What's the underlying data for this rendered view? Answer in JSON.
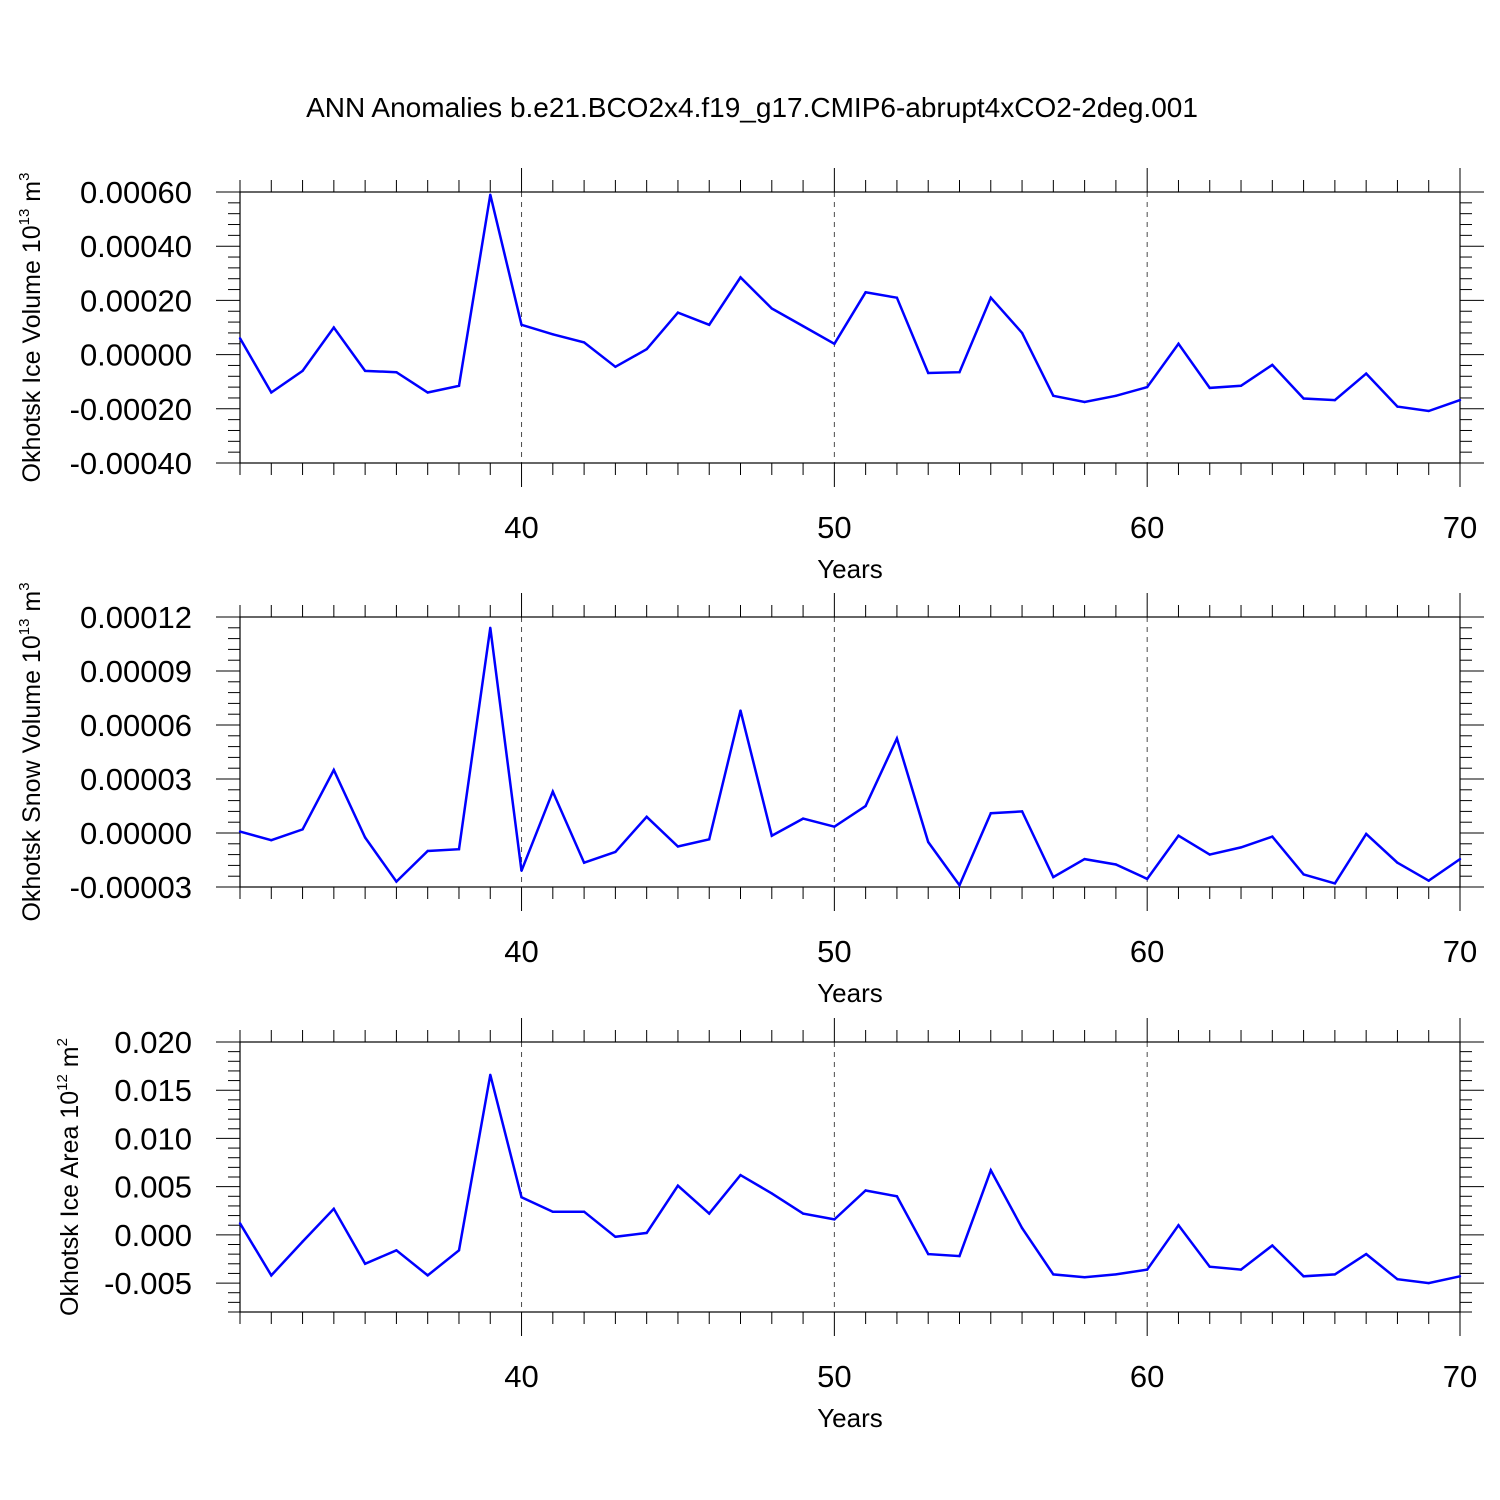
{
  "title": "ANN Anomalies b.e21.BCO2x4.f19_g17.CMIP6-abrupt4xCO2-2deg.001",
  "colors": {
    "line": "#0000ff",
    "axis": "#000000",
    "gridline": "#000000"
  },
  "chart_data": [
    {
      "type": "line",
      "ylabel": {
        "text": "Okhotsk Ice Volume 10",
        "exp": "13",
        "unit": " m",
        "unit_exp": "3"
      },
      "xlabel": "Years",
      "xlim": [
        31,
        70
      ],
      "ylim": [
        -0.0004,
        0.0006
      ],
      "yticks": [
        "0.00060",
        "0.00040",
        "0.00020",
        "0.00000",
        "-0.00020",
        "-0.00040"
      ],
      "xticks": [
        "40",
        "50",
        "60",
        "70"
      ],
      "x": [
        31,
        32,
        33,
        34,
        35,
        36,
        37,
        38,
        39,
        40,
        41,
        42,
        43,
        44,
        45,
        46,
        47,
        48,
        49,
        50,
        51,
        52,
        53,
        54,
        55,
        56,
        57,
        58,
        59,
        60,
        61,
        62,
        63,
        64,
        65,
        66,
        67,
        68,
        69,
        70
      ],
      "series": [
        {
          "values": [
            6e-05,
            -0.00014,
            -6e-05,
            0.0001,
            -6e-05,
            -6.5e-05,
            -0.00014,
            -0.000115,
            0.00059,
            0.00011,
            7.5e-05,
            4.5e-05,
            -4.5e-05,
            2e-05,
            0.000155,
            0.00011,
            0.000285,
            0.00017,
            0.000105,
            4e-05,
            0.00023,
            0.00021,
            -6.8e-05,
            -6.5e-05,
            0.00021,
            8e-05,
            -0.000152,
            -0.000175,
            -0.000152,
            -0.00012,
            4e-05,
            -0.000123,
            -0.000115,
            -3.8e-05,
            -0.000162,
            -0.000168,
            -7e-05,
            -0.000192,
            -0.000208,
            -0.000168
          ]
        }
      ]
    },
    {
      "type": "line",
      "ylabel": {
        "text": "Okhotsk Snow Volume 10",
        "exp": "13",
        "unit": " m",
        "unit_exp": "3"
      },
      "xlabel": "Years",
      "xlim": [
        31,
        70
      ],
      "ylim": [
        -3e-05,
        0.00012
      ],
      "yticks": [
        "0.00012",
        "0.00009",
        "0.00006",
        "0.00003",
        "0.00000",
        "-0.00003"
      ],
      "xticks": [
        "40",
        "50",
        "60",
        "70"
      ],
      "x": [
        31,
        32,
        33,
        34,
        35,
        36,
        37,
        38,
        39,
        40,
        41,
        42,
        43,
        44,
        45,
        46,
        47,
        48,
        49,
        50,
        51,
        52,
        53,
        54,
        55,
        56,
        57,
        58,
        59,
        60,
        61,
        62,
        63,
        64,
        65,
        66,
        67,
        68,
        69,
        70
      ],
      "series": [
        {
          "values": [
            8e-07,
            -4e-06,
            2e-06,
            3.5e-05,
            -2.5e-06,
            -2.7e-05,
            -1e-05,
            -9e-06,
            0.000114,
            -2.1e-05,
            2.3e-05,
            -1.65e-05,
            -1.05e-05,
            9e-06,
            -7.5e-06,
            -3.5e-06,
            6.8e-05,
            -1.5e-06,
            8e-06,
            3.5e-06,
            1.5e-05,
            5.25e-05,
            -5e-06,
            -2.9e-05,
            1.1e-05,
            1.2e-05,
            -2.45e-05,
            -1.45e-05,
            -1.75e-05,
            -2.55e-05,
            -1.5e-06,
            -1.2e-05,
            -8e-06,
            -2e-06,
            -2.3e-05,
            -2.8e-05,
            -5e-07,
            -1.65e-05,
            -2.65e-05,
            -1.45e-05
          ]
        }
      ]
    },
    {
      "type": "line",
      "ylabel": {
        "text": "Okhotsk Ice Area 10",
        "exp": "12",
        "unit": " m",
        "unit_exp": "2"
      },
      "xlabel": "Years",
      "xlim": [
        31,
        70
      ],
      "ylim": [
        -0.008,
        0.02
      ],
      "yticks": [
        "0.020",
        "0.015",
        "0.010",
        "0.005",
        "0.000",
        "-0.005"
      ],
      "xticks": [
        "40",
        "50",
        "60",
        "70"
      ],
      "x": [
        31,
        32,
        33,
        34,
        35,
        36,
        37,
        38,
        39,
        40,
        41,
        42,
        43,
        44,
        45,
        46,
        47,
        48,
        49,
        50,
        51,
        52,
        53,
        54,
        55,
        56,
        57,
        58,
        59,
        60,
        61,
        62,
        63,
        64,
        65,
        66,
        67,
        68,
        69,
        70
      ],
      "series": [
        {
          "values": [
            0.0012,
            -0.0042,
            -0.0007,
            0.0027,
            -0.003,
            -0.0016,
            -0.0042,
            -0.0016,
            0.0166,
            0.0039,
            0.0024,
            0.0024,
            -0.0002,
            0.0002,
            0.0051,
            0.0022,
            0.0062,
            0.0043,
            0.0022,
            0.0016,
            0.0046,
            0.004,
            -0.002,
            -0.0022,
            0.0067,
            0.0007,
            -0.0041,
            -0.0044,
            -0.0041,
            -0.0036,
            0.001,
            -0.0033,
            -0.0036,
            -0.0011,
            -0.0043,
            -0.0041,
            -0.002,
            -0.0046,
            -0.005,
            -0.0043
          ]
        }
      ]
    }
  ]
}
